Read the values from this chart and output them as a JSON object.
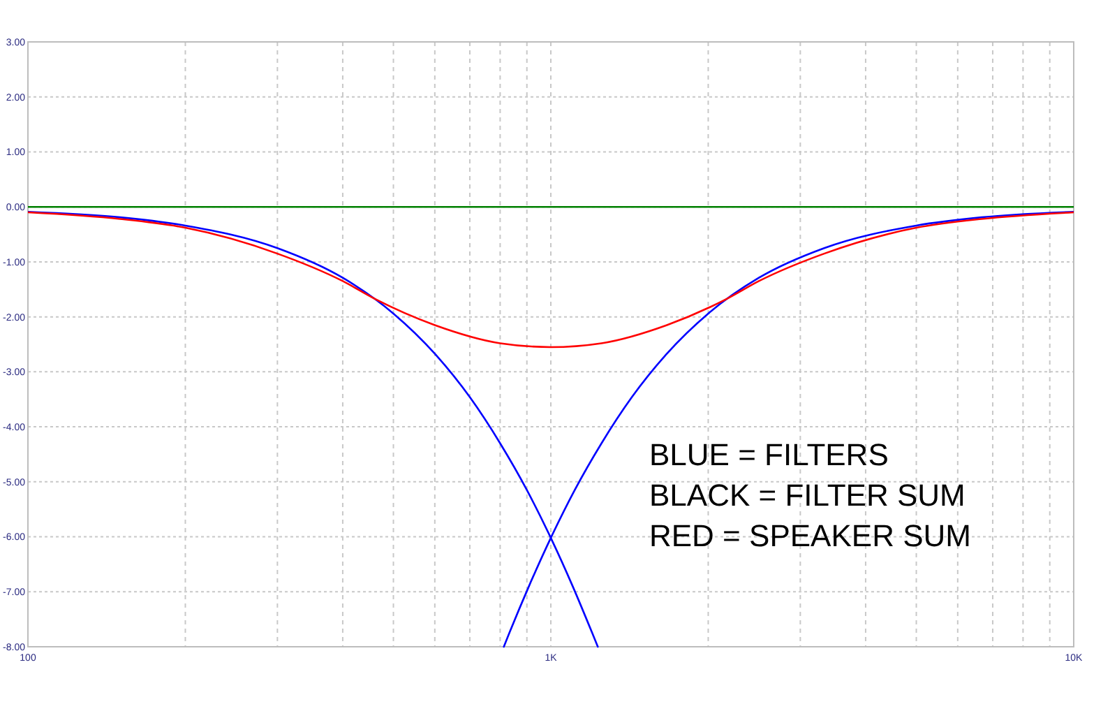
{
  "chart_data": {
    "type": "line",
    "log": "x",
    "grid": true,
    "line_style": "solid",
    "marker": "none",
    "xlim": [
      100,
      10000
    ],
    "ylim": [
      -8,
      3
    ],
    "xticks": [
      {
        "value": 100,
        "label": "100"
      },
      {
        "value": 200,
        "label": null
      },
      {
        "value": 300,
        "label": null
      },
      {
        "value": 400,
        "label": null
      },
      {
        "value": 500,
        "label": null
      },
      {
        "value": 600,
        "label": null
      },
      {
        "value": 700,
        "label": null
      },
      {
        "value": 800,
        "label": null
      },
      {
        "value": 900,
        "label": null
      },
      {
        "value": 1000,
        "label": "1K"
      },
      {
        "value": 2000,
        "label": null
      },
      {
        "value": 3000,
        "label": null
      },
      {
        "value": 4000,
        "label": null
      },
      {
        "value": 5000,
        "label": null
      },
      {
        "value": 6000,
        "label": null
      },
      {
        "value": 7000,
        "label": null
      },
      {
        "value": 8000,
        "label": null
      },
      {
        "value": 9000,
        "label": null
      },
      {
        "value": 10000,
        "label": "10K"
      }
    ],
    "yticks": [
      {
        "value": 3,
        "label": "3.00"
      },
      {
        "value": 2,
        "label": "2.00"
      },
      {
        "value": 1,
        "label": "1.00"
      },
      {
        "value": 0,
        "label": "0.00"
      },
      {
        "value": -1,
        "label": "-1.00"
      },
      {
        "value": -2,
        "label": "-2.00"
      },
      {
        "value": -3,
        "label": "-3.00"
      },
      {
        "value": -4,
        "label": "-4.00"
      },
      {
        "value": -5,
        "label": "-5.00"
      },
      {
        "value": -6,
        "label": "-6.00"
      },
      {
        "value": -7,
        "label": "-7.00"
      },
      {
        "value": -8,
        "label": "-8.00"
      }
    ],
    "series": [
      {
        "color": "#008000",
        "x": [
          100,
          1000,
          10000
        ],
        "values": [
          0,
          0,
          0
        ]
      },
      {
        "color": "#0000ff",
        "x": [
          100,
          150,
          200,
          300,
          400,
          500,
          600,
          700,
          800,
          900,
          1000,
          1100,
          1200,
          1230
        ],
        "values": [
          -0.09,
          -0.19,
          -0.34,
          -0.75,
          -1.29,
          -1.94,
          -2.67,
          -3.46,
          -4.3,
          -5.15,
          -6.02,
          -6.89,
          -7.75,
          -8
        ]
      },
      {
        "color": "#0000ff",
        "x": [
          813,
          833,
          909,
          1000,
          1111,
          1250,
          1429,
          1667,
          2000,
          2500,
          3333,
          5000,
          6667,
          10000
        ],
        "values": [
          -8,
          -7.75,
          -6.89,
          -6.02,
          -5.15,
          -4.3,
          -3.46,
          -2.67,
          -1.94,
          -1.29,
          -0.75,
          -0.34,
          -0.19,
          -0.09
        ]
      },
      {
        "color": "#ff0000",
        "x": [
          100,
          150,
          200,
          300,
          400,
          460,
          600,
          800,
          1000,
          1250,
          1667,
          2174,
          2500,
          3333,
          5000,
          6667,
          10000
        ],
        "values": [
          -0.1,
          -0.22,
          -0.38,
          -0.85,
          -1.35,
          -1.67,
          -2.15,
          -2.48,
          -2.55,
          -2.48,
          -2.15,
          -1.67,
          -1.35,
          -0.85,
          -0.38,
          -0.22,
          -0.1
        ]
      }
    ],
    "annotations": [
      "BLUE = FILTERS",
      "BLACK = FILTER SUM",
      "RED = SPEAKER SUM"
    ]
  }
}
